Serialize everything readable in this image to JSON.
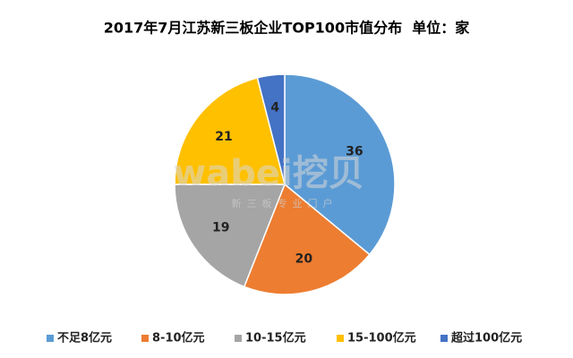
{
  "chart_data": {
    "type": "pie",
    "title": "2017年7月江苏新三板企业TOP100市值分布  单位：家",
    "categories": [
      "不足8亿元",
      "8-10亿元",
      "10-15亿元",
      "15-100亿元",
      "超过100亿元"
    ],
    "values": [
      36,
      20,
      19,
      21,
      4
    ],
    "colors": [
      "#5b9bd5",
      "#ed7d31",
      "#a5a5a5",
      "#ffc000",
      "#4472c4"
    ],
    "legend": "bottom",
    "watermark": {
      "brand": "wabei挖贝",
      "slogan": "新三板专业门户"
    }
  }
}
